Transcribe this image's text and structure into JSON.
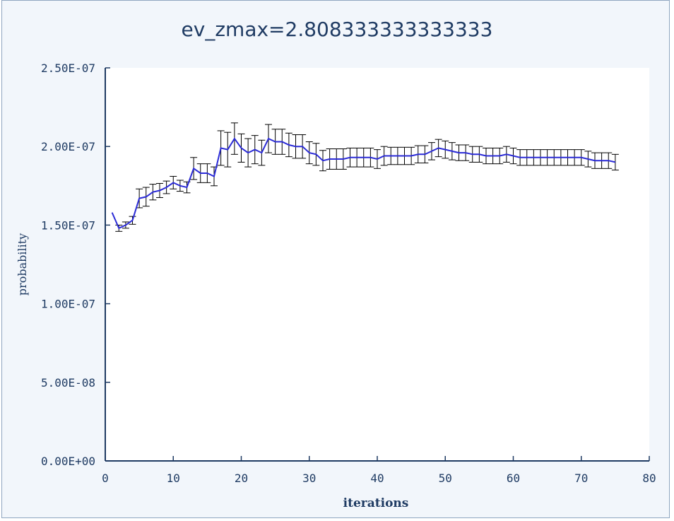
{
  "chart_data": {
    "type": "line",
    "title": "ev_zmax=2.808333333333333",
    "xlabel": "iterations",
    "ylabel": "probability",
    "xlim": [
      0,
      80
    ],
    "ylim": [
      0,
      2.5e-07
    ],
    "x_ticks": [
      0,
      10,
      20,
      30,
      40,
      50,
      60,
      70,
      80
    ],
    "x_tick_labels": [
      "0",
      "10",
      "20",
      "30",
      "40",
      "50",
      "60",
      "70",
      "80"
    ],
    "y_ticks": [
      0,
      5e-08,
      1e-07,
      1.5e-07,
      2e-07,
      2.5e-07
    ],
    "y_tick_labels": [
      "0.00E+00",
      "5.00E-08",
      "1.00E-07",
      "1.50E-07",
      "2.00E-07",
      "2.50E-07"
    ],
    "grid": false,
    "colors": {
      "line": "#2b2bd6",
      "errorbar": "#000000",
      "axis": "#1f3b63",
      "plot_bg": "#ffffff",
      "frame_bg": "#f2f6fb"
    },
    "series": [
      {
        "x": [
          1,
          2,
          3,
          4,
          5,
          6,
          7,
          8,
          9,
          10,
          11,
          12,
          13,
          14,
          15,
          16,
          17,
          18,
          19,
          20,
          21,
          22,
          23,
          24,
          25,
          26,
          27,
          28,
          29,
          30,
          31,
          32,
          33,
          34,
          35,
          36,
          37,
          38,
          39,
          40,
          41,
          42,
          43,
          44,
          45,
          46,
          47,
          48,
          49,
          50,
          51,
          52,
          53,
          54,
          55,
          56,
          57,
          58,
          59,
          60,
          61,
          62,
          63,
          64,
          65,
          66,
          67,
          68,
          69,
          70,
          71,
          72,
          73,
          74,
          75
        ],
        "y": [
          1.58e-07,
          1.48e-07,
          1.5e-07,
          1.53e-07,
          1.67e-07,
          1.68e-07,
          1.71e-07,
          1.72e-07,
          1.74e-07,
          1.77e-07,
          1.75e-07,
          1.74e-07,
          1.86e-07,
          1.83e-07,
          1.83e-07,
          1.81e-07,
          1.99e-07,
          1.98e-07,
          2.05e-07,
          1.99e-07,
          1.96e-07,
          1.98e-07,
          1.96e-07,
          2.05e-07,
          2.03e-07,
          2.03e-07,
          2.01e-07,
          2e-07,
          2e-07,
          1.96e-07,
          1.95e-07,
          1.91e-07,
          1.92e-07,
          1.92e-07,
          1.92e-07,
          1.93e-07,
          1.93e-07,
          1.93e-07,
          1.93e-07,
          1.92e-07,
          1.94e-07,
          1.94e-07,
          1.94e-07,
          1.94e-07,
          1.94e-07,
          1.95e-07,
          1.95e-07,
          1.97e-07,
          1.99e-07,
          1.98e-07,
          1.97e-07,
          1.96e-07,
          1.96e-07,
          1.95e-07,
          1.95e-07,
          1.94e-07,
          1.94e-07,
          1.94e-07,
          1.95e-07,
          1.94e-07,
          1.93e-07,
          1.93e-07,
          1.93e-07,
          1.93e-07,
          1.93e-07,
          1.93e-07,
          1.93e-07,
          1.93e-07,
          1.93e-07,
          1.93e-07,
          1.92e-07,
          1.91e-07,
          1.91e-07,
          1.91e-07,
          1.9e-07
        ],
        "yerr": [
          0,
          2e-09,
          2e-09,
          2.5e-09,
          6e-09,
          6e-09,
          5e-09,
          4.5e-09,
          4e-09,
          4e-09,
          3.5e-09,
          3.5e-09,
          7e-09,
          6e-09,
          6e-09,
          6e-09,
          1.1e-08,
          1.1e-08,
          1e-08,
          9e-09,
          9e-09,
          9e-09,
          8e-09,
          9e-09,
          8e-09,
          8e-09,
          7.5e-09,
          7.5e-09,
          7.5e-09,
          7e-09,
          7e-09,
          6.5e-09,
          6.5e-09,
          6.5e-09,
          6.5e-09,
          6e-09,
          6e-09,
          6e-09,
          6e-09,
          6e-09,
          6e-09,
          5.5e-09,
          5.5e-09,
          5.5e-09,
          5.5e-09,
          5.5e-09,
          5.5e-09,
          5.5e-09,
          5.5e-09,
          5.5e-09,
          5.5e-09,
          5e-09,
          5e-09,
          5e-09,
          5e-09,
          5e-09,
          5e-09,
          5e-09,
          5e-09,
          5e-09,
          5e-09,
          5e-09,
          5e-09,
          5e-09,
          5e-09,
          5e-09,
          5e-09,
          5e-09,
          5e-09,
          5e-09,
          5e-09,
          5e-09,
          5e-09,
          5e-09,
          5e-09
        ]
      }
    ]
  }
}
